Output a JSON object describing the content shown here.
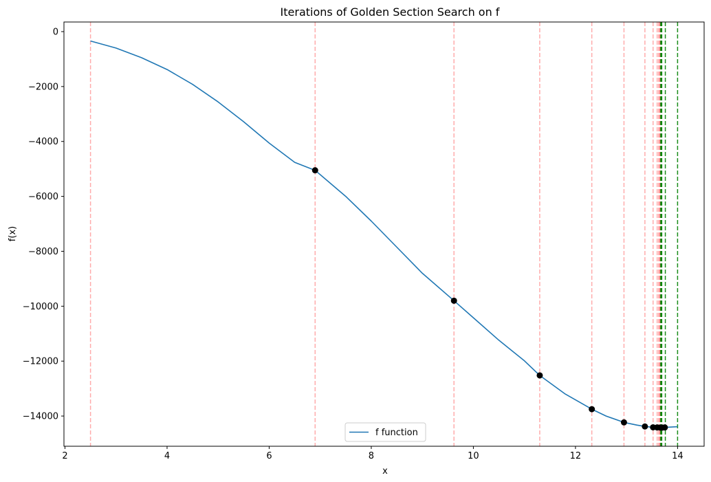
{
  "chart_data": {
    "type": "line",
    "title": "Iterations of Golden Section Search on f",
    "xlabel": "x",
    "ylabel": "f(x)",
    "xlim": [
      1.98,
      14.52
    ],
    "ylim": [
      -15100,
      350
    ],
    "xticks": [
      2,
      4,
      6,
      8,
      10,
      12,
      14
    ],
    "yticks": [
      0,
      -2000,
      -4000,
      -6000,
      -8000,
      -10000,
      -12000,
      -14000
    ],
    "xtick_labels": [
      "2",
      "4",
      "6",
      "8",
      "10",
      "12",
      "14"
    ],
    "ytick_labels": [
      "0",
      "−2000",
      "−4000",
      "−6000",
      "−8000",
      "−10000",
      "−12000",
      "−14000"
    ],
    "grid": false,
    "legend": {
      "placement": "lower-center",
      "entries": [
        "f function"
      ]
    },
    "series": [
      {
        "name": "f function",
        "color": "#1f77b4",
        "x": [
          2.5,
          3.0,
          3.5,
          4.0,
          4.5,
          5.0,
          5.5,
          6.0,
          6.5,
          6.9,
          7.5,
          8.0,
          8.5,
          9.0,
          9.62,
          10.0,
          10.5,
          11.0,
          11.3,
          11.8,
          12.32,
          12.6,
          12.95,
          13.2,
          13.36,
          13.52,
          13.62,
          13.7,
          13.78,
          14.0
        ],
        "y": [
          -340,
          -600,
          -950,
          -1380,
          -1920,
          -2560,
          -3280,
          -4060,
          -4760,
          -5050,
          -6000,
          -6900,
          -7850,
          -8800,
          -9800,
          -10420,
          -11240,
          -11990,
          -12520,
          -13200,
          -13750,
          -14000,
          -14230,
          -14330,
          -14380,
          -14410,
          -14420,
          -14420,
          -14410,
          -14390
        ]
      }
    ],
    "iteration_points": {
      "color": "#000000",
      "x": [
        6.9,
        9.62,
        11.3,
        12.32,
        12.95,
        13.36,
        13.52,
        13.6,
        13.66,
        13.7,
        13.75
      ],
      "y": [
        -5050,
        -9800,
        -12520,
        -13750,
        -14230,
        -14380,
        -14410,
        -14415,
        -14420,
        -14420,
        -14415
      ]
    },
    "lower_bound_lines": {
      "color": "#ff0000",
      "style": "dashed",
      "x": [
        2.5,
        6.9,
        9.62,
        11.3,
        12.32,
        12.95,
        13.36,
        13.52,
        13.6,
        13.63,
        13.65,
        13.66
      ]
    },
    "upper_bound_lines": {
      "color": "#008000",
      "style": "dashed",
      "x": [
        14.0,
        13.76,
        13.69,
        13.68,
        13.67
      ]
    }
  }
}
